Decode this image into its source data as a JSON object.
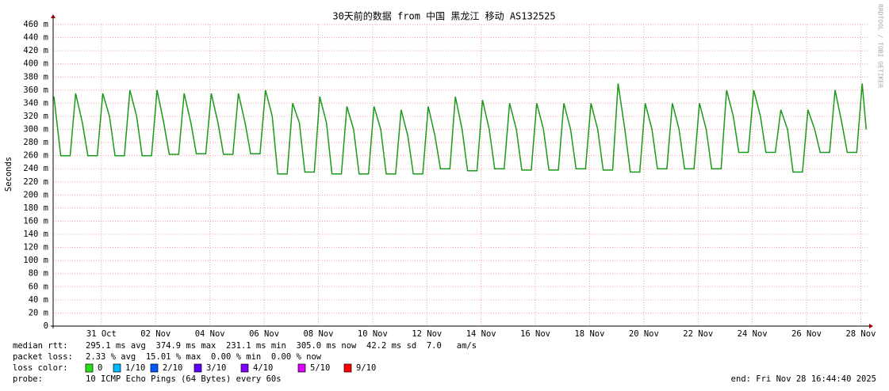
{
  "chart_data": {
    "type": "line",
    "title": "30天前的数据 from 中国 黑龙江 移动 AS132525",
    "y_label": "Seconds",
    "watermark": "RRDTOOL / TOBI OETIKER",
    "xlim": [
      -0.78,
      29.25
    ],
    "xticks": [
      {
        "value": 1,
        "label": "31 Oct"
      },
      {
        "value": 3,
        "label": "02 Nov"
      },
      {
        "value": 5,
        "label": "04 Nov"
      },
      {
        "value": 7,
        "label": "06 Nov"
      },
      {
        "value": 9,
        "label": "08 Nov"
      },
      {
        "value": 11,
        "label": "10 Nov"
      },
      {
        "value": 13,
        "label": "12 Nov"
      },
      {
        "value": 15,
        "label": "14 Nov"
      },
      {
        "value": 17,
        "label": "16 Nov"
      },
      {
        "value": 19,
        "label": "18 Nov"
      },
      {
        "value": 21,
        "label": "20 Nov"
      },
      {
        "value": 23,
        "label": "22 Nov"
      },
      {
        "value": 25,
        "label": "24 Nov"
      },
      {
        "value": 27,
        "label": "26 Nov"
      },
      {
        "value": 29,
        "label": "28 Nov"
      }
    ],
    "ylim": [
      0,
      0.46
    ],
    "yticks": [
      0,
      {
        "value": 0.02,
        "label": "20 m"
      },
      {
        "value": 0.04,
        "label": "40 m"
      },
      {
        "value": 0.06,
        "label": "60 m"
      },
      {
        "value": 0.08,
        "label": "80 m"
      },
      {
        "value": 0.1,
        "label": "100 m"
      },
      {
        "value": 0.12,
        "label": "120 m"
      },
      {
        "value": 0.14,
        "label": "140 m"
      },
      {
        "value": 0.16,
        "label": "160 m"
      },
      {
        "value": 0.18,
        "label": "180 m"
      },
      {
        "value": 0.2,
        "label": "200 m"
      },
      {
        "value": 0.22,
        "label": "220 m"
      },
      {
        "value": 0.24,
        "label": "240 m"
      },
      {
        "value": 0.26,
        "label": "260 m"
      },
      {
        "value": 0.28,
        "label": "280 m"
      },
      {
        "value": 0.3,
        "label": "300 m"
      },
      {
        "value": 0.32,
        "label": "320 m"
      },
      {
        "value": 0.34,
        "label": "340 m"
      },
      {
        "value": 0.36,
        "label": "360 m"
      },
      {
        "value": 0.38,
        "label": "380 m"
      },
      {
        "value": 0.4,
        "label": "400 m"
      },
      {
        "value": 0.42,
        "label": "420 m"
      },
      {
        "value": 0.44,
        "label": "440 m"
      },
      {
        "value": 0.46,
        "label": "460 m"
      }
    ],
    "grid": true,
    "x": [
      -0.75,
      -0.5,
      -0.15,
      0.05,
      0.3,
      0.5,
      0.85,
      1.05,
      1.3,
      1.5,
      1.85,
      2.05,
      2.3,
      2.5,
      2.85,
      3.05,
      3.3,
      3.5,
      3.85,
      4.05,
      4.3,
      4.5,
      4.85,
      5.05,
      5.3,
      5.5,
      5.85,
      6.05,
      6.3,
      6.5,
      6.85,
      7.05,
      7.3,
      7.5,
      7.85,
      8.05,
      8.3,
      8.5,
      8.85,
      9.05,
      9.3,
      9.5,
      9.85,
      10.05,
      10.3,
      10.5,
      10.85,
      11.05,
      11.3,
      11.5,
      11.85,
      12.05,
      12.3,
      12.5,
      12.85,
      13.05,
      13.3,
      13.5,
      13.85,
      14.05,
      14.3,
      14.5,
      14.85,
      15.05,
      15.3,
      15.5,
      15.85,
      16.05,
      16.3,
      16.5,
      16.85,
      17.05,
      17.3,
      17.5,
      17.85,
      18.05,
      18.3,
      18.5,
      18.85,
      19.05,
      19.3,
      19.5,
      19.85,
      20.05,
      20.3,
      20.5,
      20.85,
      21.05,
      21.3,
      21.5,
      21.85,
      22.05,
      22.3,
      22.5,
      22.85,
      23.05,
      23.3,
      23.5,
      23.85,
      24.05,
      24.3,
      24.5,
      24.85,
      25.05,
      25.3,
      25.5,
      25.85,
      26.05,
      26.3,
      26.5,
      26.85,
      27.05,
      27.3,
      27.5,
      27.85,
      28.05,
      28.3,
      28.5,
      28.85,
      29.05,
      29.2
    ],
    "series": [
      {
        "name": "median rtt",
        "color": "#1a9a1a",
        "values": [
          0.35,
          0.26,
          0.26,
          0.355,
          0.31,
          0.26,
          0.26,
          0.355,
          0.32,
          0.26,
          0.26,
          0.36,
          0.32,
          0.26,
          0.26,
          0.36,
          0.31,
          0.262,
          0.262,
          0.355,
          0.31,
          0.263,
          0.263,
          0.355,
          0.31,
          0.262,
          0.262,
          0.355,
          0.31,
          0.263,
          0.263,
          0.36,
          0.32,
          0.232,
          0.232,
          0.34,
          0.31,
          0.235,
          0.235,
          0.35,
          0.31,
          0.232,
          0.232,
          0.335,
          0.3,
          0.232,
          0.232,
          0.335,
          0.3,
          0.232,
          0.232,
          0.33,
          0.29,
          0.232,
          0.232,
          0.335,
          0.29,
          0.24,
          0.24,
          0.35,
          0.3,
          0.237,
          0.237,
          0.345,
          0.3,
          0.24,
          0.24,
          0.34,
          0.3,
          0.238,
          0.238,
          0.34,
          0.3,
          0.238,
          0.238,
          0.34,
          0.3,
          0.24,
          0.24,
          0.34,
          0.3,
          0.238,
          0.238,
          0.37,
          0.3,
          0.235,
          0.235,
          0.34,
          0.3,
          0.24,
          0.24,
          0.34,
          0.3,
          0.24,
          0.24,
          0.34,
          0.3,
          0.24,
          0.24,
          0.36,
          0.32,
          0.265,
          0.265,
          0.36,
          0.32,
          0.265,
          0.265,
          0.33,
          0.3,
          0.235,
          0.235,
          0.33,
          0.3,
          0.265,
          0.265,
          0.36,
          0.31,
          0.265,
          0.265,
          0.37,
          0.3
        ]
      }
    ],
    "stats": [
      {
        "label": "median rtt:",
        "text": "295.1 ms avg  374.9 ms max  231.1 ms min  305.0 ms now  42.2 ms sd  7.0   am/s"
      },
      {
        "label": "packet loss:",
        "text": "2.33 % avg  15.01 % max  0.00 % min  0.00 % now"
      }
    ],
    "loss_legend": {
      "label": "loss color:",
      "items": [
        {
          "name": "0",
          "color": "#26e01a"
        },
        {
          "name": "1/10",
          "color": "#00b8ff"
        },
        {
          "name": "2/10",
          "color": "#0059ff"
        },
        {
          "name": "3/10",
          "color": "#5e00ff"
        },
        {
          "name": "4/10",
          "color": "#7e00ff"
        },
        {
          "name": "5/10",
          "color": "#dd00ff"
        },
        {
          "name": "9/10",
          "color": "#ff0000"
        }
      ]
    },
    "probe": {
      "label": "probe:",
      "text": "10 ICMP Echo Pings (64 Bytes) every 60s"
    },
    "end": "end: Fri Nov 28 16:44:40 2025"
  }
}
